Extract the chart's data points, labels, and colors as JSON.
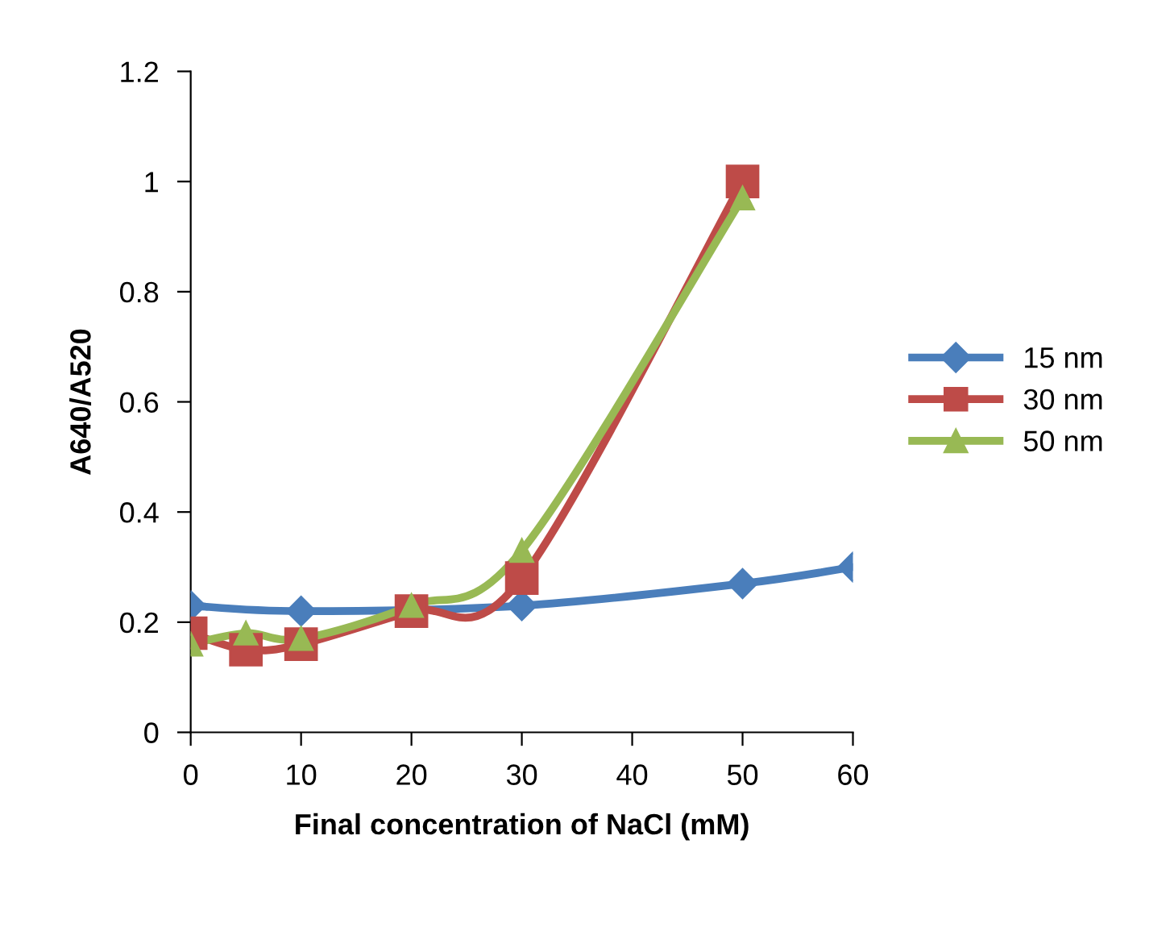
{
  "chart_data": {
    "type": "line",
    "xlabel": "Final concentration of NaCl (mM)",
    "ylabel": "A640/A520",
    "xlim": [
      0,
      60
    ],
    "xticks": [
      0,
      10,
      20,
      30,
      40,
      50,
      60
    ],
    "ylim": [
      0,
      1.2
    ],
    "yticks": [
      0,
      0.2,
      0.4,
      0.6,
      0.8,
      1,
      1.2
    ],
    "grid": false,
    "legend": "right",
    "series": [
      {
        "name": "15 nm",
        "color": "#4a7ebb",
        "marker": "diamond",
        "x": [
          0,
          10,
          20,
          30,
          50,
          60
        ],
        "values": [
          0.23,
          0.22,
          null,
          0.23,
          0.27,
          0.3
        ]
      },
      {
        "name": "30 nm",
        "color": "#be4b48",
        "marker": "square",
        "x": [
          0,
          5,
          10,
          20,
          30,
          50
        ],
        "values": [
          0.18,
          0.15,
          0.16,
          0.22,
          0.28,
          1.0
        ]
      },
      {
        "name": "50 nm",
        "color": "#98b954",
        "marker": "triangle",
        "x": [
          0,
          5,
          10,
          20,
          30,
          50
        ],
        "values": [
          0.16,
          0.18,
          0.17,
          0.23,
          0.33,
          0.97
        ]
      }
    ]
  }
}
